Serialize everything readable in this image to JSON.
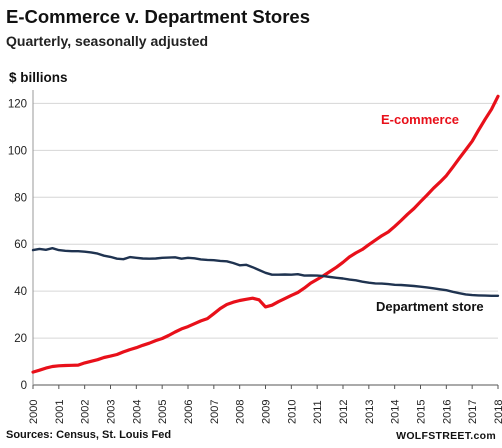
{
  "header": {
    "title": "E-Commerce v. Department Stores",
    "subtitle": "Quarterly, seasonally adjusted",
    "ylabel": "$ billions"
  },
  "footer": {
    "source": "Sources: Census, St. Louis Fed",
    "brand": "WOLFSTREET.com"
  },
  "colors": {
    "ecommerce": "#e8101a",
    "department": "#1f3350",
    "grid": "#d6d6d6"
  },
  "chart_data": {
    "type": "line",
    "title": "E-Commerce v. Department Stores",
    "subtitle": "Quarterly, seasonally adjusted",
    "ylabel": "$ billions",
    "xlabel": "",
    "ylim": [
      0,
      124
    ],
    "xlim": [
      2000,
      2018
    ],
    "y_ticks": [
      0,
      20,
      40,
      60,
      80,
      100,
      120
    ],
    "x_ticks": [
      "2000",
      "2001",
      "2002",
      "2003",
      "2004",
      "2005",
      "2006",
      "2007",
      "2008",
      "2009",
      "2010",
      "2011",
      "2012",
      "2013",
      "2014",
      "2015",
      "2016",
      "2017",
      "2018"
    ],
    "grid": "horizontal",
    "series": [
      {
        "name": "E-commerce",
        "x": [
          2000,
          2000.25,
          2000.5,
          2000.75,
          2001,
          2001.25,
          2001.5,
          2001.75,
          2002,
          2002.25,
          2002.5,
          2002.75,
          2003,
          2003.25,
          2003.5,
          2003.75,
          2004,
          2004.25,
          2004.5,
          2004.75,
          2005,
          2005.25,
          2005.5,
          2005.75,
          2006,
          2006.25,
          2006.5,
          2006.75,
          2007,
          2007.25,
          2007.5,
          2007.75,
          2008,
          2008.25,
          2008.5,
          2008.75,
          2009,
          2009.25,
          2009.5,
          2009.75,
          2010,
          2010.25,
          2010.5,
          2010.75,
          2011,
          2011.25,
          2011.5,
          2011.75,
          2012,
          2012.25,
          2012.5,
          2012.75,
          2013,
          2013.25,
          2013.5,
          2013.75,
          2014,
          2014.25,
          2014.5,
          2014.75,
          2015,
          2015.25,
          2015.5,
          2015.75,
          2016,
          2016.25,
          2016.5,
          2016.75,
          2017,
          2017.25,
          2017.5,
          2017.75,
          2018
        ],
        "values": [
          5.5,
          6.3,
          7.2,
          7.9,
          8.2,
          8.3,
          8.4,
          8.5,
          9.4,
          10.1,
          10.8,
          11.7,
          12.3,
          13.0,
          14.1,
          15.1,
          15.9,
          16.9,
          17.8,
          18.9,
          19.8,
          21.1,
          22.6,
          23.9,
          24.9,
          26.1,
          27.3,
          28.3,
          30.4,
          32.6,
          34.3,
          35.3,
          36.0,
          36.5,
          37.0,
          36.3,
          33.3,
          34.0,
          35.5,
          36.8,
          38.2,
          39.4,
          41.3,
          43.4,
          45.0,
          46.6,
          48.4,
          50.2,
          52.3,
          54.6,
          56.3,
          57.8,
          59.8,
          61.7,
          63.6,
          65.2,
          67.6,
          70.1,
          72.8,
          75.2,
          78.1,
          80.9,
          83.8,
          86.4,
          89.2,
          92.8,
          96.6,
          100.2,
          103.9,
          108.6,
          113.2,
          117.5,
          123.0
        ]
      },
      {
        "name": "Department store",
        "x": [
          2000,
          2000.25,
          2000.5,
          2000.75,
          2001,
          2001.25,
          2001.5,
          2001.75,
          2002,
          2002.25,
          2002.5,
          2002.75,
          2003,
          2003.25,
          2003.5,
          2003.75,
          2004,
          2004.25,
          2004.5,
          2004.75,
          2005,
          2005.25,
          2005.5,
          2005.75,
          2006,
          2006.25,
          2006.5,
          2006.75,
          2007,
          2007.25,
          2007.5,
          2007.75,
          2008,
          2008.25,
          2008.5,
          2008.75,
          2009,
          2009.25,
          2009.5,
          2009.75,
          2010,
          2010.25,
          2010.5,
          2010.75,
          2011,
          2011.25,
          2011.5,
          2011.75,
          2012,
          2012.25,
          2012.5,
          2012.75,
          2013,
          2013.25,
          2013.5,
          2013.75,
          2014,
          2014.25,
          2014.5,
          2014.75,
          2015,
          2015.25,
          2015.5,
          2015.75,
          2016,
          2016.25,
          2016.5,
          2016.75,
          2017,
          2017.25,
          2017.5,
          2017.75,
          2018
        ],
        "values": [
          57.5,
          58.0,
          57.6,
          58.3,
          57.5,
          57.2,
          57.0,
          57.0,
          56.8,
          56.5,
          56.0,
          55.1,
          54.6,
          53.8,
          53.6,
          54.5,
          54.2,
          53.9,
          53.8,
          53.9,
          54.2,
          54.3,
          54.4,
          53.8,
          54.2,
          54.0,
          53.5,
          53.3,
          53.2,
          52.9,
          52.7,
          52.0,
          51.0,
          51.2,
          50.2,
          49.0,
          47.8,
          47.0,
          47.0,
          47.1,
          47.0,
          47.2,
          46.6,
          46.7,
          46.6,
          46.4,
          46.0,
          45.7,
          45.4,
          44.9,
          44.6,
          44.0,
          43.6,
          43.3,
          43.2,
          43.0,
          42.7,
          42.6,
          42.4,
          42.2,
          41.9,
          41.6,
          41.2,
          40.8,
          40.4,
          39.7,
          39.1,
          38.6,
          38.3,
          38.2,
          38.1,
          38.0,
          38.0
        ]
      }
    ],
    "annotations": [
      {
        "text": "E-commerce",
        "series": "E-commerce"
      },
      {
        "text": "Department store",
        "series": "Department store"
      }
    ]
  }
}
